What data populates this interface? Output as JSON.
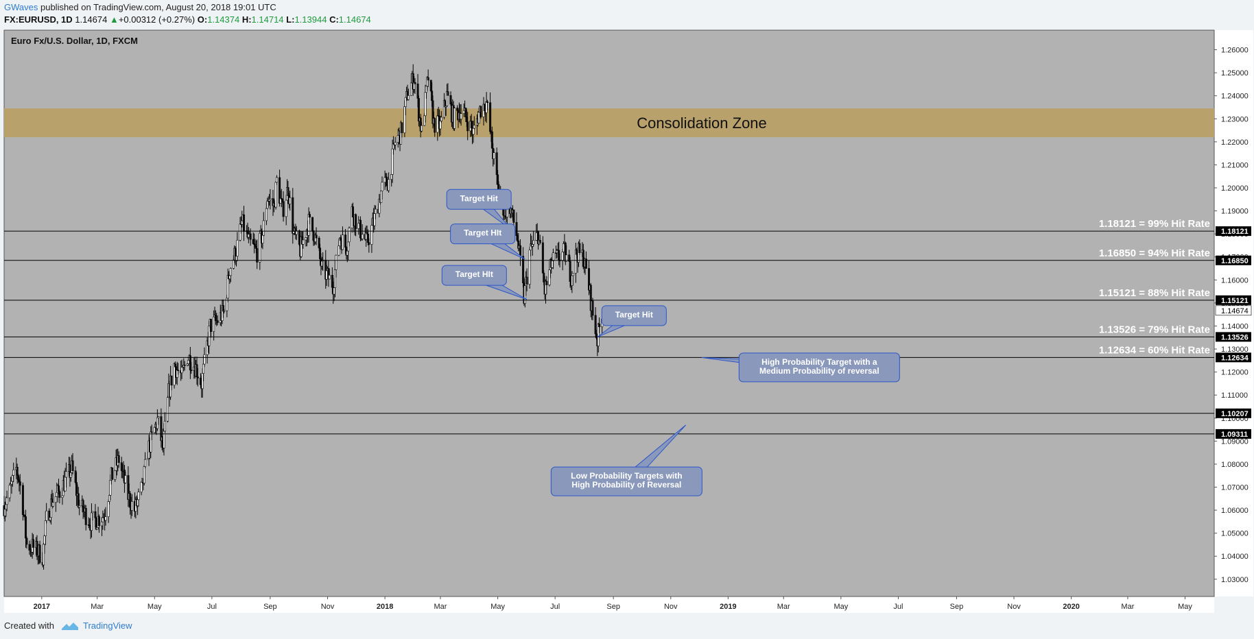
{
  "header": {
    "author": "GWaves",
    "published_text": "published on TradingView.com, August 20, 2018 19:01 UTC",
    "symbol": "FX:EURUSD, 1D",
    "last": "1.14674",
    "change": "+0.00312 (+0.27%)",
    "o_label": "O:",
    "o_value": "1.14374",
    "h_label": "H:",
    "h_value": "1.14714",
    "l_label": "L:",
    "l_value": "1.13944",
    "c_label": "C:",
    "c_value": "1.14674"
  },
  "footer": {
    "created_with": "Created with",
    "brand": "TradingView",
    "logo_icon": "tradingview-logo-icon"
  },
  "chart_data": {
    "type": "candlestick",
    "title": "Euro Fx/U.S. Dollar, 1D, FXCM",
    "ylim": [
      1.0225,
      1.2685
    ],
    "xlim": [
      "2016-11-22",
      "2020-06-01"
    ],
    "y_ticks": [
      "1.03000",
      "1.04000",
      "1.05000",
      "1.06000",
      "1.07000",
      "1.08000",
      "1.09000",
      "1.10000",
      "1.11000",
      "1.12000",
      "1.13000",
      "1.14000",
      "1.15000",
      "1.16000",
      "1.17000",
      "1.18000",
      "1.19000",
      "1.20000",
      "1.21000",
      "1.22000",
      "1.23000",
      "1.24000",
      "1.25000",
      "1.26000"
    ],
    "x_ticks": [
      {
        "date": "2017-01-01",
        "label": "2017",
        "bold": true
      },
      {
        "date": "2017-03-01",
        "label": "Mar"
      },
      {
        "date": "2017-05-01",
        "label": "May"
      },
      {
        "date": "2017-07-01",
        "label": "Jul"
      },
      {
        "date": "2017-09-01",
        "label": "Sep"
      },
      {
        "date": "2017-11-01",
        "label": "Nov"
      },
      {
        "date": "2018-01-01",
        "label": "2018",
        "bold": true
      },
      {
        "date": "2018-03-01",
        "label": "Mar"
      },
      {
        "date": "2018-05-01",
        "label": "May"
      },
      {
        "date": "2018-07-01",
        "label": "Jul"
      },
      {
        "date": "2018-09-01",
        "label": "Sep"
      },
      {
        "date": "2018-11-01",
        "label": "Nov"
      },
      {
        "date": "2019-01-01",
        "label": "2019",
        "bold": true
      },
      {
        "date": "2019-03-01",
        "label": "Mar"
      },
      {
        "date": "2019-05-01",
        "label": "May"
      },
      {
        "date": "2019-07-01",
        "label": "Jul"
      },
      {
        "date": "2019-09-01",
        "label": "Sep"
      },
      {
        "date": "2019-11-01",
        "label": "Nov"
      },
      {
        "date": "2020-01-01",
        "label": "2020",
        "bold": true
      },
      {
        "date": "2020-03-01",
        "label": "Mar"
      },
      {
        "date": "2020-05-01",
        "label": "May"
      }
    ],
    "price_path": [
      [
        "2016-11-22",
        1.062
      ],
      [
        "2016-11-28",
        1.068
      ],
      [
        "2016-12-05",
        1.078
      ],
      [
        "2016-12-08",
        1.073
      ],
      [
        "2016-12-12",
        1.062
      ],
      [
        "2016-12-16",
        1.045
      ],
      [
        "2016-12-22",
        1.044
      ],
      [
        "2017-01-02",
        1.04
      ],
      [
        "2017-01-06",
        1.056
      ],
      [
        "2017-01-12",
        1.064
      ],
      [
        "2017-01-20",
        1.068
      ],
      [
        "2017-02-02",
        1.078
      ],
      [
        "2017-02-10",
        1.062
      ],
      [
        "2017-02-22",
        1.055
      ],
      [
        "2017-03-01",
        1.056
      ],
      [
        "2017-03-09",
        1.058
      ],
      [
        "2017-03-16",
        1.074
      ],
      [
        "2017-03-24",
        1.082
      ],
      [
        "2017-04-03",
        1.066
      ],
      [
        "2017-04-10",
        1.06
      ],
      [
        "2017-04-18",
        1.07
      ],
      [
        "2017-04-24",
        1.086
      ],
      [
        "2017-05-04",
        1.099
      ],
      [
        "2017-05-10",
        1.087
      ],
      [
        "2017-05-16",
        1.111
      ],
      [
        "2017-05-22",
        1.123
      ],
      [
        "2017-05-30",
        1.118
      ],
      [
        "2017-06-05",
        1.127
      ],
      [
        "2017-06-14",
        1.122
      ],
      [
        "2017-06-20",
        1.115
      ],
      [
        "2017-06-29",
        1.14
      ],
      [
        "2017-07-06",
        1.142
      ],
      [
        "2017-07-14",
        1.146
      ],
      [
        "2017-07-20",
        1.165
      ],
      [
        "2017-07-27",
        1.173
      ],
      [
        "2017-08-02",
        1.185
      ],
      [
        "2017-08-10",
        1.176
      ],
      [
        "2017-08-18",
        1.172
      ],
      [
        "2017-08-24",
        1.18
      ],
      [
        "2017-08-29",
        1.196
      ],
      [
        "2017-09-05",
        1.192
      ],
      [
        "2017-09-08",
        1.203
      ],
      [
        "2017-09-14",
        1.19
      ],
      [
        "2017-09-20",
        1.2
      ],
      [
        "2017-09-26",
        1.18
      ],
      [
        "2017-10-03",
        1.173
      ],
      [
        "2017-10-12",
        1.185
      ],
      [
        "2017-10-18",
        1.18
      ],
      [
        "2017-10-26",
        1.165
      ],
      [
        "2017-11-07",
        1.158
      ],
      [
        "2017-11-14",
        1.179
      ],
      [
        "2017-11-21",
        1.174
      ],
      [
        "2017-11-27",
        1.19
      ],
      [
        "2017-12-05",
        1.182
      ],
      [
        "2017-12-13",
        1.176
      ],
      [
        "2017-12-20",
        1.185
      ],
      [
        "2017-12-29",
        1.2
      ],
      [
        "2018-01-05",
        1.203
      ],
      [
        "2018-01-12",
        1.22
      ],
      [
        "2018-01-18",
        1.224
      ],
      [
        "2018-01-25",
        1.241
      ],
      [
        "2018-02-01",
        1.248
      ],
      [
        "2018-02-09",
        1.224
      ],
      [
        "2018-02-16",
        1.248
      ],
      [
        "2018-02-22",
        1.228
      ],
      [
        "2018-03-01",
        1.227
      ],
      [
        "2018-03-08",
        1.24
      ],
      [
        "2018-03-15",
        1.23
      ],
      [
        "2018-03-22",
        1.234
      ],
      [
        "2018-03-29",
        1.23
      ],
      [
        "2018-04-05",
        1.224
      ],
      [
        "2018-04-12",
        1.234
      ],
      [
        "2018-04-19",
        1.237
      ],
      [
        "2018-04-25",
        1.218
      ],
      [
        "2018-05-01",
        1.2
      ],
      [
        "2018-05-08",
        1.19
      ],
      [
        "2018-05-14",
        1.192
      ],
      [
        "2018-05-22",
        1.178
      ],
      [
        "2018-05-29",
        1.152
      ],
      [
        "2018-06-04",
        1.172
      ],
      [
        "2018-06-13",
        1.18
      ],
      [
        "2018-06-20",
        1.155
      ],
      [
        "2018-06-28",
        1.168
      ],
      [
        "2018-07-05",
        1.17
      ],
      [
        "2018-07-11",
        1.172
      ],
      [
        "2018-07-18",
        1.162
      ],
      [
        "2018-07-24",
        1.172
      ],
      [
        "2018-07-31",
        1.17
      ],
      [
        "2018-08-06",
        1.157
      ],
      [
        "2018-08-10",
        1.145
      ],
      [
        "2018-08-15",
        1.134
      ],
      [
        "2018-08-20",
        1.1467
      ]
    ],
    "levels": [
      {
        "value": 1.18121,
        "label": "1.18121",
        "text": "1.18121 = 99% Hit Rate"
      },
      {
        "value": 1.1685,
        "label": "1.16850",
        "text": "1.16850 = 94% Hit Rate"
      },
      {
        "value": 1.15121,
        "label": "1.15121",
        "text": "1.15121 = 88% Hit Rate"
      },
      {
        "value": 1.13526,
        "label": "1.13526",
        "text": "1.13526 = 79% Hit Rate"
      },
      {
        "value": 1.12634,
        "label": "1.12634",
        "text": "1.12634 = 60% Hit Rate"
      },
      {
        "value": 1.10207,
        "label": "1.10207",
        "text": ""
      },
      {
        "value": 1.09311,
        "label": "1.09311",
        "text": ""
      }
    ],
    "last_price": {
      "value": 1.14674,
      "label": "1.14674"
    },
    "zone": {
      "from": 1.222,
      "to": 1.2345,
      "label": "Consolidation Zone",
      "color": "#b9a16c"
    },
    "callouts": [
      {
        "lines": [
          "Target Hit"
        ],
        "box": [
          "2018-04-11",
          1.195
        ],
        "target": [
          "2018-05-15",
          1.182
        ]
      },
      {
        "lines": [
          "Target HIt"
        ],
        "box": [
          "2018-04-15",
          1.18
        ],
        "target": [
          "2018-05-30",
          1.169
        ]
      },
      {
        "lines": [
          "Target HIt"
        ],
        "box": [
          "2018-04-06",
          1.162
        ],
        "target": [
          "2018-06-01",
          1.1515
        ]
      },
      {
        "lines": [
          "Target Hit"
        ],
        "box": [
          "2018-09-23",
          1.1445
        ],
        "target": [
          "2018-08-15",
          1.1352
        ]
      },
      {
        "lines": [
          "High Probability Target with a",
          "Medium Probability of reversal"
        ],
        "box": [
          "2019-04-08",
          1.122
        ],
        "target": [
          "2018-12-04",
          1.1263
        ]
      },
      {
        "lines": [
          "Low Probability Targets with",
          "High Probability of Reversal"
        ],
        "box": [
          "2018-09-15",
          1.0725
        ],
        "target": [
          "2018-11-17",
          1.097
        ]
      }
    ],
    "colors": {
      "background": "#b2b2b2",
      "line": "#000000",
      "candle_up": "#ffffff",
      "candle_down": "#111111",
      "callout_fill": "#8a98bb",
      "callout_stroke": "#2b55c8",
      "level_text": "#ffffff"
    }
  }
}
